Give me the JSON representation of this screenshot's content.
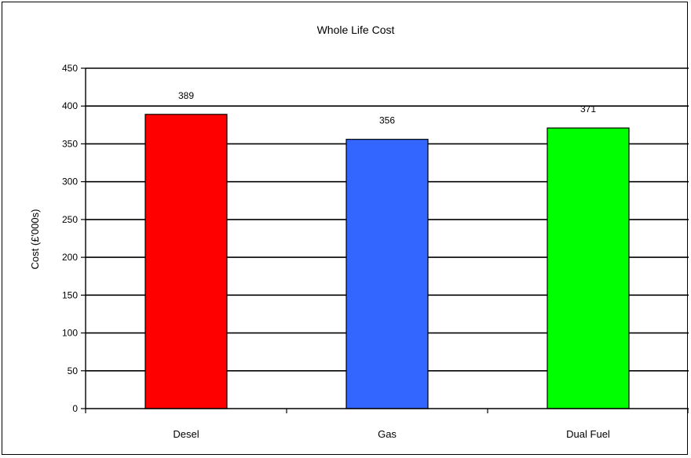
{
  "chart_data": {
    "type": "bar",
    "title": "Whole Life Cost",
    "xlabel": "",
    "ylabel": "Cost (£'000s)",
    "categories": [
      "Desel",
      "Gas",
      "Dual Fuel"
    ],
    "values": [
      389,
      356,
      371
    ],
    "data_labels": [
      "389",
      "356",
      "371"
    ],
    "bar_colors": [
      "#ff0000",
      "#3366ff",
      "#00ff00"
    ],
    "ylim": [
      0,
      450
    ],
    "yticks": [
      0,
      50,
      100,
      150,
      200,
      250,
      300,
      350,
      400,
      450
    ],
    "ytick_labels": [
      "0",
      "50",
      "100",
      "150",
      "200",
      "250",
      "300",
      "350",
      "400",
      "450"
    ],
    "grid": true,
    "legend": "none"
  }
}
